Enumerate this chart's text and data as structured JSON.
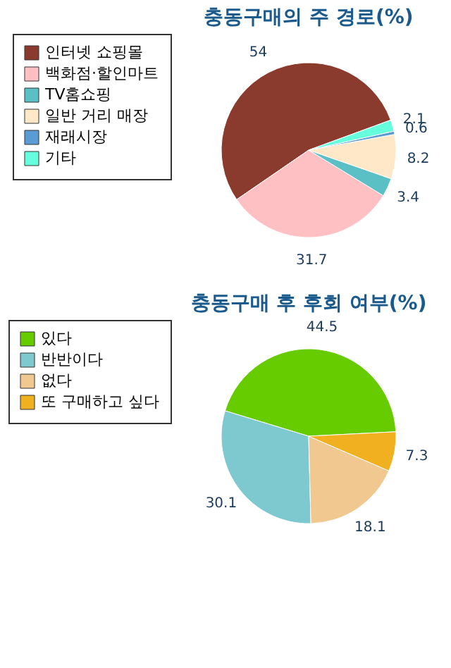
{
  "chart_data": [
    {
      "type": "pie",
      "title": "충동구매의 주 경로(%)",
      "categories": [
        "인터넷 쇼핑몰",
        "백화점·할인마트",
        "TV홈쇼핑",
        "일반 거리 매장",
        "재래시장",
        "기타"
      ],
      "values": [
        54,
        31.7,
        3.4,
        8.2,
        0.6,
        2.1
      ],
      "colors": [
        "#8b3a2e",
        "#ffc0c4",
        "#5bbfc6",
        "#ffe8c8",
        "#5b9bd5",
        "#66ffdd"
      ],
      "data_labels": true,
      "legend": "left"
    },
    {
      "type": "pie",
      "title": "충동구매 후 후회 여부(%)",
      "categories": [
        "있다",
        "반반이다",
        "없다",
        "또 구매하고 싶다"
      ],
      "values": [
        44.5,
        30.1,
        18.1,
        7.3
      ],
      "colors": [
        "#66cc00",
        "#7ec8d0",
        "#f0c890",
        "#f0b020"
      ],
      "data_labels": true,
      "legend": "left"
    }
  ]
}
